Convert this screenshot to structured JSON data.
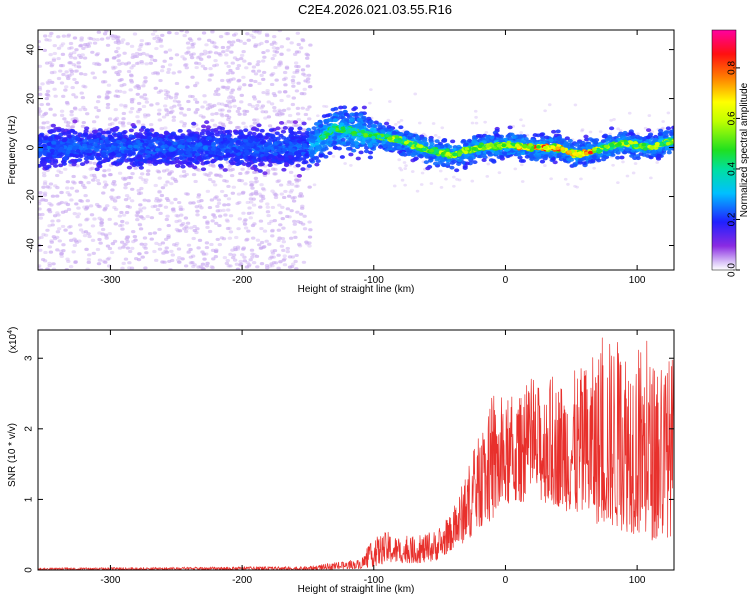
{
  "title": "C2E4.2026.021.03.55.R16",
  "chart_data": [
    {
      "type": "heatmap",
      "xlabel": "Height of straight line (km)",
      "ylabel": "Frequency (Hz)",
      "xlim": [
        -355,
        128
      ],
      "ylim": [
        -50,
        48
      ],
      "x_ticks": [
        "-300",
        "-200",
        "-100",
        "0",
        "100"
      ],
      "y_ticks": [
        "-40",
        "-20",
        "0",
        "20",
        "40"
      ],
      "colorbar": {
        "label": "Normalized spectral amplitude",
        "range": [
          0.0,
          0.95
        ],
        "ticks": [
          "0.0",
          "0.2",
          "0.4",
          "0.6",
          "0.8"
        ]
      },
      "ridge": {
        "description_points_x": [
          -355,
          -150,
          -130,
          -100,
          -80,
          -60,
          -40,
          -20,
          0,
          20,
          40,
          55,
          70,
          90,
          110,
          128
        ],
        "frequency_hz": [
          0,
          0,
          8,
          5,
          3,
          -1,
          -3,
          0,
          1,
          0,
          0,
          -3,
          -1,
          2,
          0,
          3
        ]
      }
    },
    {
      "type": "line",
      "xlabel": "Height of straight line (km)",
      "ylabel": "SNR (10 * v/v)",
      "yscale_label": "(x10",
      "yscale_exp": "4",
      "xlim": [
        -355,
        128
      ],
      "ylim": [
        0,
        3.4
      ],
      "x_ticks": [
        "-300",
        "-200",
        "-100",
        "0",
        "100"
      ],
      "y_ticks": [
        "0",
        "1",
        "2",
        "3"
      ],
      "series": [
        {
          "color": "#e8302c",
          "envelope_x": [
            -355,
            -150,
            -110,
            -100,
            -90,
            -80,
            -60,
            -50,
            -40,
            -30,
            -20,
            -10,
            0,
            20,
            40,
            60,
            80,
            100,
            115,
            128
          ],
          "envelope_low": [
            0,
            0,
            0.02,
            0.05,
            0.1,
            0.1,
            0.1,
            0.15,
            0.3,
            0.4,
            0.6,
            0.7,
            0.9,
            1.0,
            0.9,
            0.7,
            0.6,
            0.5,
            0.4,
            0.5
          ],
          "envelope_high": [
            0.03,
            0.05,
            0.15,
            0.45,
            0.55,
            0.45,
            0.5,
            0.6,
            0.8,
            1.4,
            1.9,
            2.4,
            2.3,
            2.6,
            2.7,
            2.9,
            3.3,
            3.3,
            2.9,
            3.1
          ]
        }
      ]
    }
  ]
}
